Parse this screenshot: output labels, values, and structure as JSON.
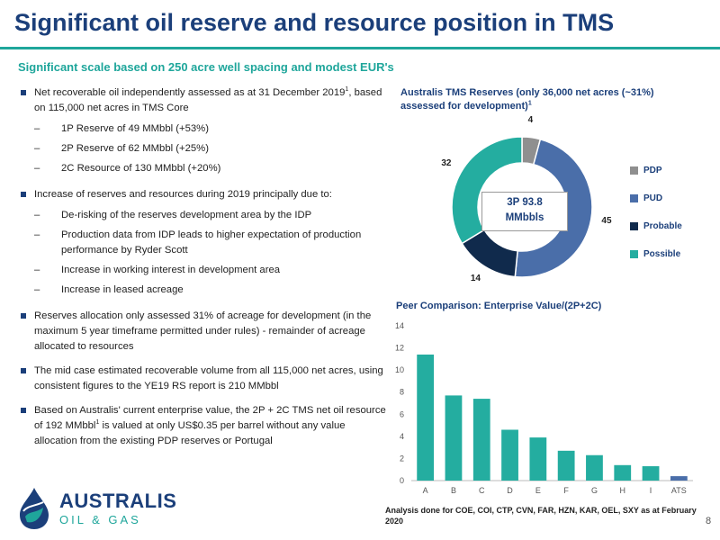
{
  "title": "Significant oil reserve and resource position in TMS",
  "subtitle": "Significant scale based on 250 acre well spacing and modest EUR's",
  "bullets": {
    "b1_main": "Net recoverable oil independently assessed as at 31 December 2019",
    "b1_sup": "1",
    "b1_tail": ", based on 115,000 net acres in TMS Core",
    "b1_s1": "1P Reserve of 49 MMbbl (+53%)",
    "b1_s2": "2P Reserve of 62 MMbbl (+25%)",
    "b1_s3": "2C Resource of 130 MMbbl (+20%)",
    "b2_main": "Increase of reserves and resources during 2019 principally due to:",
    "b2_s1": "De-risking of the reserves development area by the IDP",
    "b2_s2": "Production data from IDP leads to higher expectation of production performance by Ryder Scott",
    "b2_s3": "Increase in working interest in development area",
    "b2_s4": "Increase in leased acreage",
    "b3": "Reserves allocation only assessed 31% of acreage for development (in the maximum 5 year timeframe permitted under rules) - remainder of acreage allocated to resources",
    "b4": "The mid case estimated recoverable volume from all 115,000 net acres, using consistent figures to the YE19 RS report is 210 MMbbl",
    "b5_main": "Based on Australis' current enterprise value, the 2P + 2C TMS net oil resource of 192 MMbbl",
    "b5_sup": "1",
    "b5_tail": " is valued at only US$0.35 per barrel without any value allocation from the existing PDP reserves or Portugal"
  },
  "donut": {
    "title": "Australis TMS Reserves (only 36,000 net acres  (~31%) assessed for development)",
    "title_sup": "1",
    "center_line1": "3P 93.8",
    "center_line2": "MMbbls"
  },
  "bar": {
    "title": "Peer Comparison: Enterprise Value/(2P+2C)"
  },
  "chart_data": [
    {
      "type": "pie",
      "title": "Australis TMS Reserves (only 36,000 net acres  (~31%) assessed for development)",
      "categories": [
        "PDP",
        "PUD",
        "Probable",
        "Possible"
      ],
      "values": [
        4,
        45,
        14,
        32
      ],
      "colors": [
        "#8f8f8f",
        "#4a6ea9",
        "#102a4c",
        "#24ada0"
      ],
      "legend": "right",
      "donut": true
    },
    {
      "type": "bar",
      "title": "Peer Comparison: Enterprise Value/(2P+2C)",
      "categories": [
        "A",
        "B",
        "C",
        "D",
        "E",
        "F",
        "G",
        "H",
        "I",
        "ATS"
      ],
      "values": [
        11.4,
        7.7,
        7.4,
        4.6,
        3.9,
        2.7,
        2.3,
        1.4,
        1.3,
        0.4
      ],
      "colors": [
        "#24ada0",
        "#24ada0",
        "#24ada0",
        "#24ada0",
        "#24ada0",
        "#24ada0",
        "#24ada0",
        "#24ada0",
        "#24ada0",
        "#4a6ea9"
      ],
      "yticks": [
        0,
        2,
        4,
        6,
        8,
        10,
        12,
        14
      ],
      "ylim": [
        0,
        14
      ],
      "grid": false
    }
  ],
  "logo": {
    "name": "AUSTRALIS",
    "tagline": "OIL & GAS"
  },
  "footnote": "Analysis done for COE, COI, CTP, CVN, FAR, HZN, KAR, OEL, SXY as at February 2020",
  "page_number": "8"
}
